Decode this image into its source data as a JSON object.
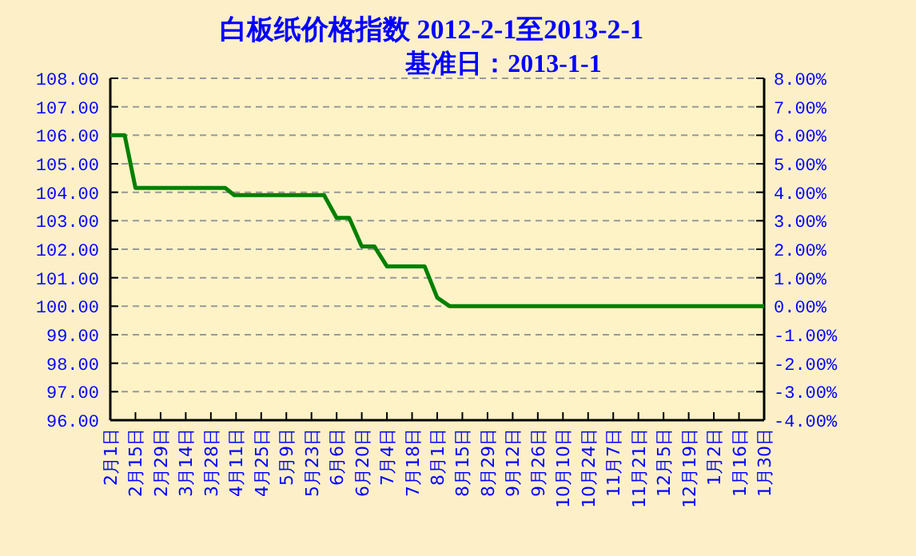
{
  "chart_data": {
    "type": "line",
    "title": "白板纸价格指数 2012-2-1至2013-2-1",
    "subtitle": "基准日：2013-1-1",
    "x": [
      "2012-02-01",
      "2012-02-09",
      "2012-02-15",
      "2012-04-05",
      "2012-04-10",
      "2012-05-30",
      "2012-06-06",
      "2012-06-13",
      "2012-06-20",
      "2012-06-27",
      "2012-07-04",
      "2012-07-25",
      "2012-08-01",
      "2012-08-08",
      "2013-01-30"
    ],
    "series": [
      {
        "color": "#008000",
        "values": [
          106.0,
          106.0,
          104.15,
          104.15,
          103.9,
          103.9,
          103.1,
          103.1,
          102.1,
          102.1,
          101.4,
          101.4,
          100.3,
          100.0,
          100.0
        ]
      }
    ],
    "xlim": [
      "2012-02-01",
      "2013-01-30"
    ],
    "xticks": [
      {
        "value": "2012-02-01",
        "label": "2月1日"
      },
      {
        "value": "2012-02-15",
        "label": "2月15日"
      },
      {
        "value": "2012-02-29",
        "label": "2月29日"
      },
      {
        "value": "2012-03-14",
        "label": "3月14日"
      },
      {
        "value": "2012-03-28",
        "label": "3月28日"
      },
      {
        "value": "2012-04-11",
        "label": "4月11日"
      },
      {
        "value": "2012-04-25",
        "label": "4月25日"
      },
      {
        "value": "2012-05-09",
        "label": "5月9日"
      },
      {
        "value": "2012-05-23",
        "label": "5月23日"
      },
      {
        "value": "2012-06-06",
        "label": "6月6日"
      },
      {
        "value": "2012-06-20",
        "label": "6月20日"
      },
      {
        "value": "2012-07-04",
        "label": "7月4日"
      },
      {
        "value": "2012-07-18",
        "label": "7月18日"
      },
      {
        "value": "2012-08-01",
        "label": "8月1日"
      },
      {
        "value": "2012-08-15",
        "label": "8月15日"
      },
      {
        "value": "2012-08-29",
        "label": "8月29日"
      },
      {
        "value": "2012-09-12",
        "label": "9月12日"
      },
      {
        "value": "2012-09-26",
        "label": "9月26日"
      },
      {
        "value": "2012-10-10",
        "label": "10月10日"
      },
      {
        "value": "2012-10-24",
        "label": "10月24日"
      },
      {
        "value": "2012-11-07",
        "label": "11月7日"
      },
      {
        "value": "2012-11-21",
        "label": "11月21日"
      },
      {
        "value": "2012-12-05",
        "label": "12月5日"
      },
      {
        "value": "2012-12-19",
        "label": "12月19日"
      },
      {
        "value": "2013-01-02",
        "label": "1月2日"
      },
      {
        "value": "2013-01-16",
        "label": "1月16日"
      },
      {
        "value": "2013-01-30",
        "label": "1月30日"
      }
    ],
    "ylim": [
      96,
      108
    ],
    "yticks": [
      {
        "value": 96,
        "label": "96.00"
      },
      {
        "value": 97,
        "label": "97.00"
      },
      {
        "value": 98,
        "label": "98.00"
      },
      {
        "value": 99,
        "label": "99.00"
      },
      {
        "value": 100,
        "label": "100.00"
      },
      {
        "value": 101,
        "label": "101.00"
      },
      {
        "value": 102,
        "label": "102.00"
      },
      {
        "value": 103,
        "label": "103.00"
      },
      {
        "value": 104,
        "label": "104.00"
      },
      {
        "value": 105,
        "label": "105.00"
      },
      {
        "value": 106,
        "label": "106.00"
      },
      {
        "value": 107,
        "label": "107.00"
      },
      {
        "value": 108,
        "label": "108.00"
      }
    ],
    "y2lim": [
      -4,
      8
    ],
    "y2ticks": [
      {
        "value": -4,
        "label": "-4.00%"
      },
      {
        "value": -3,
        "label": "-3.00%"
      },
      {
        "value": -2,
        "label": "-2.00%"
      },
      {
        "value": -1,
        "label": "-1.00%"
      },
      {
        "value": 0,
        "label": "0.00%"
      },
      {
        "value": 1,
        "label": "1.00%"
      },
      {
        "value": 2,
        "label": "2.00%"
      },
      {
        "value": 3,
        "label": "3.00%"
      },
      {
        "value": 4,
        "label": "4.00%"
      },
      {
        "value": 5,
        "label": "5.00%"
      },
      {
        "value": 6,
        "label": "6.00%"
      },
      {
        "value": 7,
        "label": "7.00%"
      },
      {
        "value": 8,
        "label": "8.00%"
      }
    ],
    "grid": "y",
    "marker": "none",
    "line_style": "solid"
  }
}
